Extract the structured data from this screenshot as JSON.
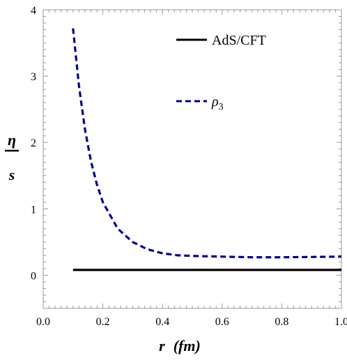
{
  "chart_data": {
    "type": "line",
    "xlabel": "r",
    "xlabel_unit": "(fm)",
    "ylabel_numerator": "η",
    "ylabel_denominator": "s",
    "xlim": [
      0.0,
      1.0
    ],
    "ylim": [
      -0.5,
      4.0
    ],
    "x_ticks": [
      "0.0",
      "0.2",
      "0.4",
      "0.6",
      "0.8",
      "1.0"
    ],
    "y_ticks": [
      "0",
      "1",
      "2",
      "3",
      "4"
    ],
    "legend_position": "top-right",
    "series": [
      {
        "name": "AdS/CFT",
        "style": "solid",
        "color": "#000000",
        "x": [
          0.1,
          1.0
        ],
        "y": [
          0.08,
          0.08
        ]
      },
      {
        "name_main": "ρ",
        "name_sub": "3",
        "style": "dashed",
        "color": "#00008B",
        "x": [
          0.1,
          0.12,
          0.14,
          0.16,
          0.18,
          0.2,
          0.25,
          0.3,
          0.35,
          0.4,
          0.45,
          0.5,
          0.6,
          0.7,
          0.8,
          0.9,
          1.0
        ],
        "y": [
          3.72,
          2.85,
          2.2,
          1.72,
          1.37,
          1.1,
          0.7,
          0.5,
          0.39,
          0.33,
          0.3,
          0.29,
          0.28,
          0.27,
          0.27,
          0.275,
          0.28
        ]
      }
    ]
  }
}
